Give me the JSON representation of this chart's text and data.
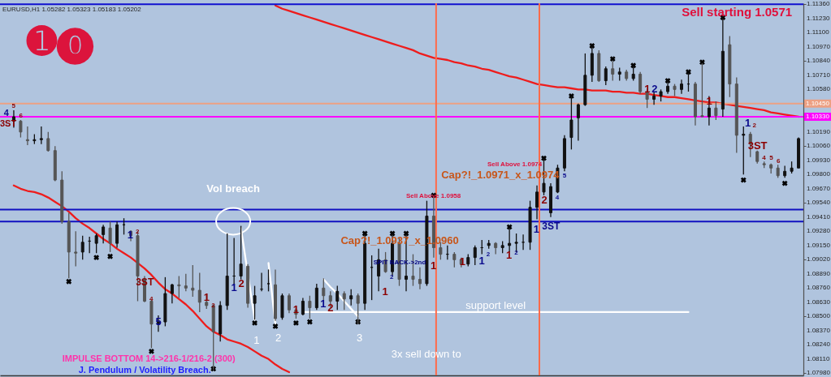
{
  "chart_data": {
    "type": "candlestick",
    "title": "Sell starting 1.0571",
    "subtitle": "EURUSD,H1  1.05282 1.05323 1.05183 1.05202",
    "categories": [
      null,
      null,
      null,
      null,
      null,
      null,
      null,
      null,
      null,
      null,
      null,
      null,
      null,
      null,
      null,
      null,
      null,
      null,
      null,
      null,
      null,
      null,
      null,
      null,
      null,
      null,
      null,
      null,
      null,
      null,
      null,
      null,
      null,
      null,
      null,
      null,
      null,
      null,
      null,
      null,
      null,
      null,
      null,
      null,
      null,
      null,
      null,
      null,
      null,
      null,
      null,
      null,
      null,
      null,
      null,
      null,
      null,
      null,
      null,
      null,
      null,
      null,
      null,
      null,
      null,
      null,
      null,
      null,
      null,
      null,
      null,
      null,
      null,
      null,
      null,
      null,
      null,
      null,
      null,
      null,
      null,
      null,
      null,
      null,
      null,
      null,
      null,
      null,
      null,
      null,
      null,
      null,
      null,
      null,
      null,
      null,
      null,
      null,
      null,
      null,
      null,
      null,
      null,
      null,
      null,
      null,
      null,
      null,
      null,
      null,
      null,
      null,
      null,
      null,
      null
    ],
    "colors": [
      "#111111",
      "#555555",
      "#555555",
      "#111111",
      "#111111",
      "#555555",
      "#555555",
      "#555555",
      "#555555",
      "#555555",
      "#111111",
      "#111111",
      "#111111",
      "#111111",
      "#555555",
      "#111111",
      "#111111",
      "#555555",
      "#555555",
      "#555555",
      "#555555",
      "#111111",
      "#111111",
      "#111111",
      "#555555",
      "#555555",
      "#555555",
      "#555555",
      "#555555",
      "#555555",
      "#111111",
      "#111111",
      "#111111",
      "#111111",
      "#555555",
      "#111111",
      "#111111",
      "#111111",
      "#555555",
      "#111111",
      "#555555",
      "#555555",
      "#111111",
      "#555555",
      "#111111",
      "#555555",
      "#555555",
      "#111111",
      "#555555",
      "#111111",
      "#555555",
      "#111111",
      "#111111",
      "#111111",
      "#555555",
      "#111111",
      "#555555",
      "#111111",
      "#555555",
      "#555555",
      "#111111",
      "#555555",
      "#555555",
      "#111111",
      "#555555",
      "#555555",
      "#111111",
      "#111111",
      "#111111",
      "#111111",
      "#555555",
      "#111111",
      "#111111",
      "#111111",
      "#111111",
      "#111111",
      "#111111",
      "#111111",
      "#111111",
      "#111111",
      "#111111",
      "#111111",
      "#111111",
      "#111111",
      "#111111",
      "#555555",
      "#111111",
      "#555555",
      "#111111",
      "#555555",
      "#111111",
      "#555555",
      "#555555",
      "#111111",
      "#111111",
      "#111111",
      "#555555",
      "#111111",
      "#111111",
      "#555555",
      "#555555",
      "#111111",
      "#555555",
      "#111111",
      "#555555",
      "#555555",
      "#111111",
      "#555555",
      "#555555",
      "#555555",
      "#555555",
      "#555555",
      "#111111",
      "#111111",
      "#111111"
    ],
    "ohlc": [
      [
        1.1029,
        1.1039,
        1.1023,
        1.1033
      ],
      [
        1.1029,
        1.103,
        1.1014,
        1.1019
      ],
      [
        1.1012,
        1.1024,
        1.1007,
        1.1011
      ],
      [
        1.1011,
        1.1017,
        1.1008,
        1.1012
      ],
      [
        1.1012,
        1.1024,
        1.1008,
        1.1013
      ],
      [
        1.1013,
        1.1019,
        1.1001,
        1.1002
      ],
      [
        1.1002,
        1.1006,
        1.0974,
        1.0975
      ],
      [
        1.0975,
        1.0983,
        1.0935,
        1.0937
      ],
      [
        1.0937,
        1.0945,
        1.0885,
        1.0909
      ],
      [
        1.0909,
        1.0928,
        1.0896,
        1.0908
      ],
      [
        1.0909,
        1.0924,
        1.0902,
        1.0918
      ],
      [
        1.0919,
        1.0923,
        1.0908,
        1.0919
      ],
      [
        1.0917,
        1.0926,
        1.0908,
        1.0924
      ],
      [
        1.0925,
        1.0934,
        1.0917,
        1.0932
      ],
      [
        1.0931,
        1.0937,
        1.0909,
        1.0917
      ],
      [
        1.0917,
        1.0937,
        1.0913,
        1.0934
      ],
      [
        1.0934,
        1.094,
        1.0925,
        1.0934
      ],
      [
        1.0928,
        1.0929,
        1.0919,
        1.0924
      ],
      [
        1.0924,
        1.0928,
        1.0864,
        1.0887
      ],
      [
        1.0884,
        1.0887,
        1.0863,
        1.0864
      ],
      [
        1.0864,
        1.0865,
        1.0821,
        1.0843
      ],
      [
        1.0843,
        1.0851,
        1.0836,
        1.0845
      ],
      [
        1.0845,
        1.0886,
        1.0841,
        1.0871
      ],
      [
        1.0871,
        1.088,
        1.0862,
        1.0879
      ],
      [
        1.0879,
        1.0887,
        1.0867,
        1.0878
      ],
      [
        1.0878,
        1.0889,
        1.0873,
        1.0876
      ],
      [
        1.0876,
        1.0897,
        1.0868,
        1.0874
      ],
      [
        1.0874,
        1.089,
        1.0854,
        1.0863
      ],
      [
        1.0863,
        1.087,
        1.0857,
        1.086
      ],
      [
        1.086,
        1.0861,
        1.0801,
        1.0836
      ],
      [
        1.0834,
        1.0864,
        1.0827,
        1.086
      ],
      [
        1.086,
        1.0926,
        1.0856,
        1.0887
      ],
      [
        1.0887,
        1.0922,
        1.0878,
        1.0887
      ],
      [
        1.0887,
        1.0933,
        1.0884,
        1.0898
      ],
      [
        1.0896,
        1.0898,
        1.0858,
        1.0862
      ],
      [
        1.0862,
        1.0878,
        1.0847,
        1.0869
      ],
      [
        1.0875,
        1.089,
        1.0873,
        1.0875
      ],
      [
        1.088,
        1.0893,
        1.0873,
        1.088
      ],
      [
        1.0879,
        1.0893,
        1.0846,
        1.0848
      ],
      [
        1.0849,
        1.0871,
        1.0847,
        1.0869
      ],
      [
        1.0869,
        1.0871,
        1.0853,
        1.0856
      ],
      [
        1.0856,
        1.086,
        1.0848,
        1.0852
      ],
      [
        1.0852,
        1.0867,
        1.0851,
        1.0864
      ],
      [
        1.0864,
        1.0869,
        1.0848,
        1.0858
      ],
      [
        1.0858,
        1.088,
        1.0856,
        1.0876
      ],
      [
        1.0876,
        1.0885,
        1.0863,
        1.0869
      ],
      [
        1.0869,
        1.0873,
        1.0858,
        1.0864
      ],
      [
        1.0864,
        1.0878,
        1.0856,
        1.0873
      ],
      [
        1.0871,
        1.0873,
        1.0856,
        1.0866
      ],
      [
        1.0866,
        1.0875,
        1.086,
        1.0869
      ],
      [
        1.0869,
        1.0871,
        1.0843,
        1.0862
      ],
      [
        1.0862,
        1.0926,
        1.0856,
        1.0917
      ],
      [
        1.0895,
        1.0906,
        1.0865,
        1.0895
      ],
      [
        1.0887,
        1.0912,
        1.0873,
        1.0902
      ],
      [
        1.0902,
        1.0909,
        1.089,
        1.0891
      ],
      [
        1.0891,
        1.0926,
        1.0887,
        1.0917
      ],
      [
        1.0917,
        1.0922,
        1.0878,
        1.0884
      ],
      [
        1.0884,
        1.0926,
        1.0873,
        1.0887
      ],
      [
        1.0887,
        1.0907,
        1.0878,
        1.0884
      ],
      [
        1.0884,
        1.0895,
        1.0875,
        1.088
      ],
      [
        1.088,
        1.0956,
        1.0878,
        1.0942
      ],
      [
        1.0942,
        1.0961,
        1.0904,
        1.0913
      ],
      [
        1.0913,
        1.0918,
        1.0902,
        1.0907
      ],
      [
        1.0907,
        1.0915,
        1.0902,
        1.0907
      ],
      [
        1.0907,
        1.0909,
        1.0895,
        1.0902
      ],
      [
        1.0902,
        1.0904,
        1.0895,
        1.0898
      ],
      [
        1.0898,
        1.0907,
        1.0896,
        1.0904
      ],
      [
        1.0904,
        1.0915,
        1.0897,
        1.0913
      ],
      [
        1.0913,
        1.092,
        1.0907,
        1.0913
      ],
      [
        1.0915,
        1.092,
        1.0912,
        1.0917
      ],
      [
        1.0917,
        1.0918,
        1.0907,
        1.0913
      ],
      [
        1.0913,
        1.0919,
        1.0908,
        1.0915
      ],
      [
        1.0915,
        1.0931,
        1.0909,
        1.0917
      ],
      [
        1.0917,
        1.0926,
        1.0909,
        1.0918
      ],
      [
        1.0918,
        1.0925,
        1.0911,
        1.0918
      ],
      [
        1.0918,
        1.0956,
        1.0911,
        1.095
      ],
      [
        1.095,
        1.097,
        1.0939,
        1.0964
      ],
      [
        1.0964,
        1.0995,
        1.0961,
        1.0972
      ],
      [
        1.0945,
        1.0972,
        1.0941,
        1.0969
      ],
      [
        1.0964,
        1.0989,
        1.0963,
        1.0986
      ],
      [
        1.0986,
        1.1016,
        1.0983,
        1.1013
      ],
      [
        1.1014,
        1.1052,
        1.1003,
        1.103
      ],
      [
        1.1032,
        1.1045,
        1.1011,
        1.1044
      ],
      [
        1.1044,
        1.1091,
        1.1043,
        1.1071
      ],
      [
        1.1071,
        1.1099,
        1.1065,
        1.1091
      ],
      [
        1.1091,
        1.1094,
        1.1065,
        1.1066
      ],
      [
        1.1066,
        1.1079,
        1.1062,
        1.1077
      ],
      [
        1.1077,
        1.1084,
        1.1066,
        1.1072
      ],
      [
        1.1072,
        1.1078,
        1.1066,
        1.1074
      ],
      [
        1.1074,
        1.1076,
        1.1066,
        1.1068
      ],
      [
        1.1068,
        1.108,
        1.1066,
        1.1072
      ],
      [
        1.1072,
        1.1074,
        1.1054,
        1.1056
      ],
      [
        1.1056,
        1.1058,
        1.1041,
        1.1049
      ],
      [
        1.1049,
        1.1056,
        1.1044,
        1.1052
      ],
      [
        1.1052,
        1.1058,
        1.1047,
        1.1056
      ],
      [
        1.1056,
        1.1067,
        1.1054,
        1.1061
      ],
      [
        1.1061,
        1.1063,
        1.1052,
        1.1058
      ],
      [
        1.1058,
        1.1067,
        1.1054,
        1.1063
      ],
      [
        1.1063,
        1.1073,
        1.1056,
        1.1063
      ],
      [
        1.1063,
        1.1065,
        1.1025,
        1.1033
      ],
      [
        1.1034,
        1.1082,
        1.1033,
        1.1033
      ],
      [
        1.1033,
        1.1052,
        1.1025,
        1.1041
      ],
      [
        1.1041,
        1.1047,
        1.103,
        1.1034
      ],
      [
        1.104,
        1.1126,
        1.1033,
        1.1093
      ],
      [
        1.1099,
        1.1107,
        1.1051,
        1.1063
      ],
      [
        1.1063,
        1.1069,
        1.1,
        1.1016
      ],
      [
        1.1016,
        1.1024,
        1.098,
        1.1017
      ],
      [
        1.1017,
        1.1019,
        1.0996,
        1.1008
      ],
      [
        1.1001,
        1.1002,
        1.099,
        1.0992
      ],
      [
        1.099,
        1.0992,
        1.0986,
        1.0989
      ],
      [
        1.0989,
        1.099,
        1.0981,
        1.0986
      ],
      [
        1.0986,
        1.0989,
        1.0977,
        1.0979
      ],
      [
        1.0979,
        1.0988,
        1.0977,
        1.0983
      ],
      [
        1.0983,
        1.0992,
        1.0981,
        1.0986
      ],
      [
        1.0986,
        1.1014,
        1.0986,
        1.1013
      ]
    ],
    "series": [
      {
        "type": "line",
        "color": "#ee1c1c",
        "values": [
          1.097,
          1.0967,
          1.0965,
          1.0964,
          1.0962,
          1.0959,
          1.0955,
          1.0951,
          1.0946,
          1.094,
          1.0935,
          1.0931,
          1.0926,
          1.0921,
          1.0917,
          1.0912,
          1.0908,
          1.0904,
          1.0899,
          1.0894,
          1.0888,
          1.0881,
          1.0875,
          1.0871,
          1.0866,
          1.0861,
          1.0855,
          1.0848,
          1.0841,
          1.0836,
          1.0833,
          1.0829,
          1.0827,
          1.0825,
          1.0822,
          1.0818,
          1.0814,
          1.0811,
          1.0806,
          1.0802,
          1.0799,
          null,
          null,
          null,
          null,
          null,
          null,
          null,
          null,
          null,
          null,
          null,
          null,
          null,
          null,
          null,
          null,
          null,
          null,
          null,
          null,
          null,
          null,
          null,
          null,
          null,
          null,
          null,
          null,
          null,
          null,
          null,
          null,
          null,
          null,
          null,
          null,
          null,
          null,
          null,
          null,
          null,
          null,
          null,
          null,
          null,
          null,
          null,
          null,
          null,
          null,
          null,
          null,
          null,
          null,
          null,
          null,
          null,
          null,
          null,
          null,
          null,
          null,
          null,
          null,
          null,
          null,
          null,
          null,
          null,
          null,
          null,
          null,
          null,
          null
        ]
      },
      {
        "type": "line",
        "color": "#ee1c1c",
        "values": [
          null,
          null,
          null,
          null,
          null,
          null,
          null,
          null,
          null,
          null,
          null,
          null,
          null,
          null,
          null,
          null,
          null,
          null,
          null,
          null,
          null,
          null,
          null,
          null,
          null,
          null,
          null,
          null,
          null,
          null,
          null,
          null,
          null,
          null,
          null,
          null,
          null,
          null,
          1.1135,
          1.1132,
          1.113,
          1.1128,
          1.1126,
          1.1124,
          1.1122,
          1.112,
          1.1118,
          1.1116,
          1.1114,
          1.1112,
          1.111,
          1.1108,
          1.1106,
          1.1104,
          1.1102,
          1.11,
          1.1098,
          1.1096,
          1.1094,
          1.1091,
          1.1089,
          1.1087,
          1.1086,
          1.1085,
          1.1083,
          1.1082,
          1.108,
          1.1079,
          1.1077,
          1.1076,
          1.1074,
          1.1072,
          1.107,
          1.1069,
          1.1067,
          1.1065,
          1.1063,
          1.1062,
          1.1061,
          1.106,
          1.106,
          1.1059,
          1.1058,
          1.1058,
          1.1057,
          1.1057,
          1.1057,
          1.1056,
          1.1056,
          1.1055,
          1.1055,
          1.1054,
          1.1054,
          1.1053,
          1.1052,
          1.1051,
          1.1051,
          1.105,
          1.1049,
          1.1048,
          1.1047,
          1.1046,
          1.1046,
          1.1045,
          1.1044,
          1.1043,
          1.1042,
          1.1041,
          1.104,
          1.1039,
          1.1037,
          1.1036,
          1.1035,
          1.1034,
          1.1033
        ]
      },
      {
        "type": "line",
        "name": "support level",
        "color": "#ffffff",
        "values": [
          null,
          null,
          null,
          null,
          null,
          null,
          null,
          null,
          null,
          null,
          null,
          null,
          null,
          null,
          null,
          null,
          null,
          null,
          null,
          null,
          null,
          null,
          null,
          null,
          null,
          null,
          null,
          null,
          null,
          null,
          null,
          null,
          null,
          null,
          null,
          null,
          null,
          null,
          null,
          null,
          null,
          null,
          1.0854,
          1.0854,
          1.0854,
          1.0854,
          1.0854,
          1.0854,
          1.0854,
          1.0854,
          1.0854,
          1.0854,
          1.0854,
          1.0854,
          1.0854,
          1.0854,
          1.0854,
          1.0854,
          1.0854,
          1.0854,
          1.0854,
          1.0854,
          1.0854,
          1.0854,
          1.0854,
          1.0854,
          1.0854,
          1.0854,
          1.0854,
          1.0854,
          1.0854,
          1.0854,
          1.0854,
          1.0854,
          1.0854,
          1.0854,
          1.0854,
          1.0854,
          1.0854,
          1.0854,
          1.0854,
          1.0854,
          1.0854,
          1.0854,
          1.0854,
          1.0854,
          1.0854,
          1.0854,
          1.0854,
          1.0854,
          1.0854,
          1.0854,
          1.0854,
          1.0854,
          1.0854,
          1.0854,
          1.0854,
          1.0854,
          1.0854,
          null,
          null,
          null,
          null,
          null,
          null,
          null,
          null,
          null,
          null,
          null,
          null,
          null,
          null,
          null,
          null
        ]
      },
      {
        "type": "line",
        "color": "#ffffff",
        "values": [
          null,
          null,
          null,
          null,
          null,
          null,
          null,
          null,
          null,
          null,
          null,
          null,
          null,
          null,
          null,
          null,
          null,
          null,
          null,
          null,
          null,
          null,
          null,
          null,
          null,
          null,
          null,
          null,
          null,
          null,
          null,
          null,
          null,
          1.0931,
          null,
          1.0847,
          null,
          null,
          null,
          null,
          null,
          null,
          null,
          null,
          null,
          null,
          null,
          null,
          null,
          null,
          null,
          null,
          null,
          null,
          null,
          null,
          null,
          null,
          null,
          null,
          null,
          null,
          null,
          null,
          null,
          null,
          null,
          null,
          null,
          null,
          null,
          null,
          null,
          null,
          null,
          null,
          null,
          null,
          null,
          null,
          null,
          null,
          null,
          null,
          null,
          null,
          null,
          null,
          null,
          null,
          null,
          null,
          null,
          null,
          null,
          null,
          null,
          null,
          null,
          null,
          null,
          null,
          null,
          null,
          null,
          null,
          null,
          null,
          null,
          null,
          null,
          null,
          null,
          null,
          null
        ]
      },
      {
        "type": "line",
        "color": "#ffffff",
        "values": [
          null,
          null,
          null,
          null,
          null,
          null,
          null,
          null,
          null,
          null,
          null,
          null,
          null,
          null,
          null,
          null,
          null,
          null,
          null,
          null,
          null,
          null,
          null,
          null,
          null,
          null,
          null,
          null,
          null,
          null,
          null,
          null,
          null,
          null,
          null,
          null,
          null,
          1.0899,
          1.0843,
          null,
          null,
          null,
          null,
          null,
          null,
          null,
          null,
          null,
          null,
          null,
          null,
          null,
          null,
          null,
          null,
          null,
          null,
          null,
          null,
          null,
          null,
          null,
          null,
          null,
          null,
          null,
          null,
          null,
          null,
          null,
          null,
          null,
          null,
          null,
          null,
          null,
          null,
          null,
          null,
          null,
          null,
          null,
          null,
          null,
          null,
          null,
          null,
          null,
          null,
          null,
          null,
          null,
          null,
          null,
          null,
          null,
          null,
          null,
          null,
          null,
          null,
          null,
          null,
          null,
          null,
          null,
          null,
          null,
          null,
          null,
          null,
          null,
          null,
          null,
          null
        ]
      },
      {
        "type": "line",
        "color": "#ffffff",
        "values": [
          null,
          null,
          null,
          null,
          null,
          null,
          null,
          null,
          null,
          null,
          null,
          null,
          null,
          null,
          null,
          null,
          null,
          null,
          null,
          null,
          null,
          null,
          null,
          null,
          null,
          null,
          null,
          null,
          null,
          null,
          null,
          null,
          null,
          null,
          null,
          null,
          null,
          null,
          null,
          null,
          null,
          null,
          null,
          null,
          null,
          1.0884,
          1.0877,
          1.0871,
          1.0864,
          1.0857,
          1.085,
          null,
          null,
          null,
          null,
          null,
          null,
          null,
          null,
          null,
          null,
          null,
          null,
          null,
          null,
          null,
          null,
          null,
          null,
          null,
          null,
          null,
          null,
          null,
          null,
          null,
          null,
          null,
          null,
          null,
          null,
          null,
          null,
          null,
          null,
          null,
          null,
          null,
          null,
          null,
          null,
          null,
          null,
          null,
          null,
          null,
          null,
          null,
          null,
          null,
          null,
          null,
          null,
          null,
          null,
          null,
          null,
          null,
          null,
          null,
          null,
          null,
          null,
          null,
          null
        ]
      },
      {
        "type": "scatter",
        "color": "#000000",
        "marker": "cross",
        "values": [
          null,
          null,
          null,
          null,
          null,
          null,
          null,
          null,
          1.0882,
          null,
          null,
          null,
          1.0904,
          null,
          1.0905,
          null,
          null,
          null,
          null,
          null,
          1.0818,
          null,
          null,
          null,
          null,
          null,
          null,
          null,
          null,
          1.0802,
          null,
          null,
          null,
          null,
          null,
          1.0844,
          null,
          null,
          1.0841,
          null,
          null,
          1.0844,
          null,
          1.0845,
          null,
          null,
          null,
          null,
          null,
          null,
          1.0845,
          1.0926,
          null,
          null,
          null,
          1.0926,
          null,
          1.0926,
          null,
          null,
          null,
          1.0961,
          null,
          null,
          null,
          null,
          null,
          null,
          null,
          null,
          null,
          null,
          1.0932,
          null,
          null,
          null,
          null,
          1.0995,
          null,
          null,
          null,
          1.1052,
          null,
          null,
          1.1098,
          null,
          null,
          1.1086,
          null,
          null,
          1.108,
          null,
          null,
          null,
          null,
          1.1066,
          null,
          null,
          1.1074,
          null,
          1.1083,
          null,
          null,
          1.1124,
          null,
          null,
          1.0975,
          null,
          null,
          null,
          null,
          null,
          1.0972,
          null,
          null
        ]
      }
    ],
    "ylim": [
      1.0796,
      1.1137
    ],
    "yticks": [
      {
        "value": 1.1136,
        "label": "1.11360"
      },
      {
        "value": 1.1123,
        "label": "1.11230"
      },
      {
        "value": 1.111,
        "label": "1.11100"
      },
      {
        "value": 1.1097,
        "label": "1.10970"
      },
      {
        "value": 1.1084,
        "label": "1.10840"
      },
      {
        "value": 1.1071,
        "label": "1.10710"
      },
      {
        "value": 1.1058,
        "label": "1.10580"
      },
      {
        "value": 1.1019,
        "label": "1.10190"
      },
      {
        "value": 1.1006,
        "label": "1.10060"
      },
      {
        "value": 1.0993,
        "label": "1.09930"
      },
      {
        "value": 1.098,
        "label": "1.09800"
      },
      {
        "value": 1.0967,
        "label": "1.09670"
      },
      {
        "value": 1.0954,
        "label": "1.09540"
      },
      {
        "value": 1.0941,
        "label": "1.09410"
      },
      {
        "value": 1.0928,
        "label": "1.09280"
      },
      {
        "value": 1.0915,
        "label": "1.09150"
      },
      {
        "value": 1.0902,
        "label": "1.09020"
      },
      {
        "value": 1.0889,
        "label": "1.08890"
      },
      {
        "value": 1.0876,
        "label": "1.08760"
      },
      {
        "value": 1.0863,
        "label": "1.08630"
      },
      {
        "value": 1.085,
        "label": "1.08500"
      },
      {
        "value": 1.0837,
        "label": "1.08370"
      },
      {
        "value": 1.0824,
        "label": "1.08240"
      },
      {
        "value": 1.0811,
        "label": "1.08110"
      },
      {
        "value": 1.0798,
        "label": "1.07980"
      }
    ],
    "tick_labels": "y",
    "ref_lines": [
      {
        "axis": "y",
        "value": 1.1136,
        "color": "#1010d0"
      },
      {
        "axis": "y",
        "value": 1.1045,
        "label": "1.10450",
        "color": "#eda083"
      },
      {
        "axis": "y",
        "value": 1.1033,
        "label": "1.10330",
        "color": "#ff00ff"
      },
      {
        "axis": "y",
        "value": 1.0948,
        "color": "#1010c0"
      },
      {
        "axis": "y",
        "value": 1.0937,
        "color": "#1010c0"
      }
    ],
    "annotations": [
      "4",
      "5",
      "3ST",
      "6",
      "1",
      "2",
      "3ST",
      "4",
      "5",
      "1",
      "2",
      "Vol breach",
      "1",
      "2",
      "1",
      "2",
      "1",
      "1",
      "2",
      "3",
      "Cap?!_1.0937_x_1.0960",
      "SPIT BACK->2nd",
      "2",
      "1",
      "Sell Above 1.0958",
      "1",
      "1",
      "1",
      "2",
      "1",
      "2",
      "1",
      "3ST",
      "Cap?!_1.0971_x_1.0974",
      "Sell Above 1.0974",
      "2",
      "4",
      "5",
      "1",
      "2",
      "1",
      "1",
      "2",
      "3ST",
      "4",
      "5",
      "6",
      "3x sell down to",
      "IMPULSE BOTTOM 14->216-1/216-2 (300)",
      "J. Pendulum / Volatility Breach.",
      "➊⓿"
    ]
  }
}
